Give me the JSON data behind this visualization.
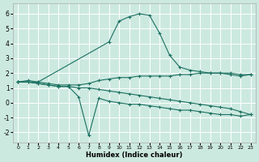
{
  "xlabel": "Humidex (Indice chaleur)",
  "background_color": "#cce9e0",
  "grid_color": "#ffffff",
  "line_color": "#1a7060",
  "xlim": [
    -0.5,
    23.5
  ],
  "ylim": [
    -2.7,
    6.7
  ],
  "yticks": [
    -2,
    -1,
    0,
    1,
    2,
    3,
    4,
    5,
    6
  ],
  "xticks": [
    0,
    1,
    2,
    3,
    4,
    5,
    6,
    7,
    8,
    9,
    10,
    11,
    12,
    13,
    14,
    15,
    16,
    17,
    18,
    19,
    20,
    21,
    22,
    23
  ],
  "series": [
    {
      "x": [
        0,
        1,
        2,
        3,
        4,
        5,
        6,
        7,
        8,
        9,
        10,
        11,
        12,
        13,
        14,
        15,
        16,
        17,
        18,
        19,
        20,
        21,
        22,
        23
      ],
      "y": [
        1.4,
        1.5,
        1.4,
        1.3,
        1.2,
        1.2,
        1.2,
        1.3,
        1.5,
        1.6,
        1.7,
        1.7,
        1.8,
        1.8,
        1.8,
        1.8,
        1.9,
        1.9,
        2.0,
        2.0,
        2.0,
        2.0,
        1.9,
        1.9
      ]
    },
    {
      "x": [
        0,
        2,
        9,
        10,
        11,
        12,
        13,
        14,
        15,
        16,
        17,
        18,
        19,
        20,
        21,
        22,
        23
      ],
      "y": [
        1.4,
        1.4,
        4.1,
        5.5,
        5.8,
        6.0,
        5.9,
        4.7,
        3.2,
        2.4,
        2.2,
        2.1,
        2.0,
        2.0,
        1.9,
        1.8,
        1.9
      ]
    },
    {
      "x": [
        0,
        1,
        2,
        3,
        4,
        5,
        6,
        7,
        8,
        9,
        10,
        11,
        12,
        13,
        14,
        15,
        16,
        17,
        18,
        19,
        20,
        21,
        22,
        23
      ],
      "y": [
        1.4,
        1.4,
        1.3,
        1.2,
        1.1,
        1.1,
        0.4,
        -2.2,
        0.3,
        0.1,
        0.0,
        -0.1,
        -0.1,
        -0.2,
        -0.3,
        -0.4,
        -0.5,
        -0.5,
        -0.6,
        -0.7,
        -0.8,
        -0.8,
        -0.9,
        -0.8
      ]
    },
    {
      "x": [
        0,
        1,
        2,
        3,
        4,
        5,
        6,
        7,
        8,
        9,
        10,
        11,
        12,
        13,
        14,
        15,
        16,
        17,
        18,
        19,
        20,
        21,
        22,
        23
      ],
      "y": [
        1.4,
        1.4,
        1.3,
        1.2,
        1.1,
        1.1,
        1.0,
        1.0,
        0.9,
        0.8,
        0.7,
        0.6,
        0.5,
        0.4,
        0.3,
        0.2,
        0.1,
        0.0,
        -0.1,
        -0.2,
        -0.3,
        -0.4,
        -0.6,
        -0.8
      ]
    }
  ]
}
